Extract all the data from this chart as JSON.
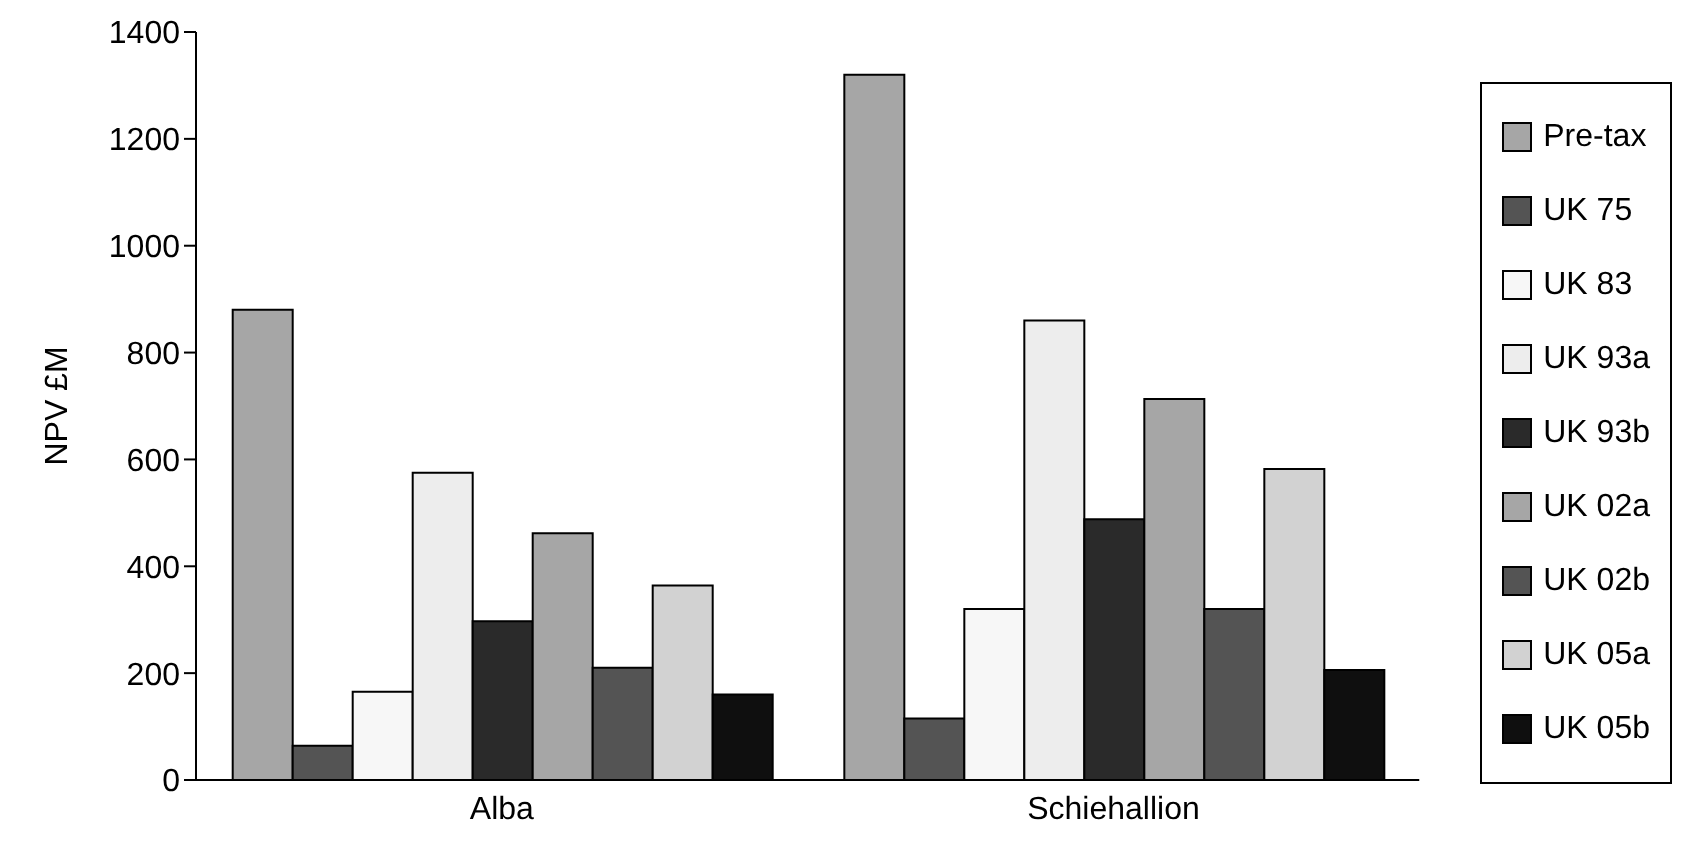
{
  "chart_data": {
    "type": "bar",
    "ylabel": "NPV £M",
    "categories": [
      "Alba",
      "Schiehallion"
    ],
    "ylim": [
      0,
      1400
    ],
    "yticks": [
      0,
      200,
      400,
      600,
      800,
      1000,
      1200,
      1400
    ],
    "grid": false,
    "legend": "right",
    "series": [
      {
        "name": "Pre-tax",
        "color": "#a6a6a6",
        "values": [
          880,
          1320
        ]
      },
      {
        "name": "UK 75",
        "color": "#545454",
        "values": [
          64,
          115
        ]
      },
      {
        "name": "UK 83",
        "color": "#f7f7f7",
        "values": [
          165,
          320
        ]
      },
      {
        "name": "UK 93a",
        "color": "#ededed",
        "values": [
          575,
          860
        ]
      },
      {
        "name": "UK 93b",
        "color": "#2a2a2a",
        "values": [
          297,
          488
        ]
      },
      {
        "name": "UK 02a",
        "color": "#a6a6a6",
        "values": [
          462,
          713
        ]
      },
      {
        "name": "UK 02b",
        "color": "#545454",
        "values": [
          210,
          320
        ]
      },
      {
        "name": "UK 05a",
        "color": "#d2d2d2",
        "values": [
          364,
          582
        ]
      },
      {
        "name": "UK 05b",
        "color": "#0f0f0f",
        "values": [
          160,
          206
        ]
      }
    ]
  }
}
